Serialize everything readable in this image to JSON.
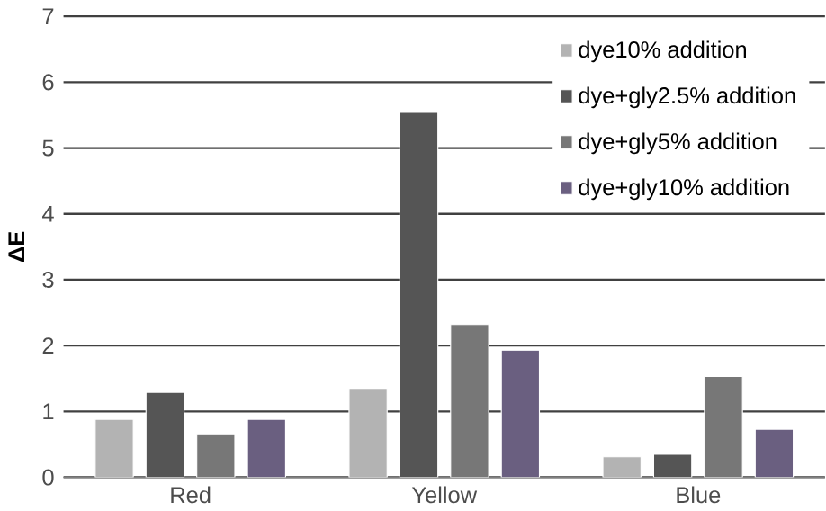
{
  "chart_data": {
    "type": "bar",
    "ylabel": "ΔE",
    "categories": [
      "Red",
      "Yellow",
      "Blue"
    ],
    "series": [
      {
        "name": "dye10% addition",
        "color": "#b3b3b3",
        "values": [
          0.88,
          1.35,
          0.31
        ]
      },
      {
        "name": "dye+gly2.5% addition",
        "color": "#555555",
        "values": [
          1.29,
          5.54,
          0.35
        ]
      },
      {
        "name": "dye+gly5% addition",
        "color": "#777777",
        "values": [
          0.66,
          2.32,
          1.53
        ]
      },
      {
        "name": "dye+gly10% addition",
        "color": "#6a5f80",
        "values": [
          0.88,
          1.93,
          0.73
        ]
      }
    ],
    "ylim": [
      0,
      7
    ],
    "yticks": [
      0,
      1,
      2,
      3,
      4,
      5,
      6,
      7
    ],
    "grid": "y",
    "legend": "top right"
  }
}
